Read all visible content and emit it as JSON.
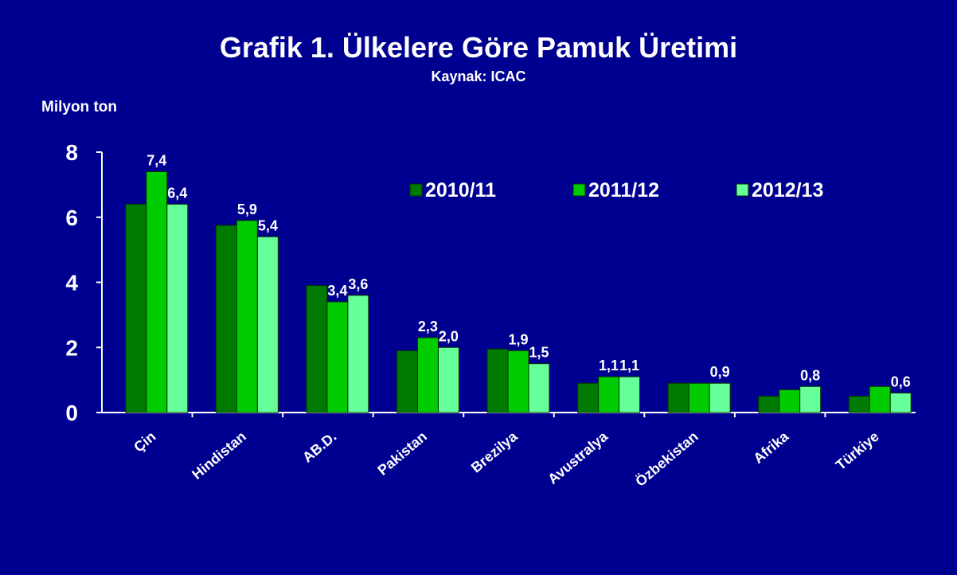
{
  "chart_data": {
    "type": "bar",
    "title": "Grafik 1. Ülkelere Göre Pamuk Üretimi",
    "subtitle": "Kaynak: ICAC",
    "y_label": "Milyon ton",
    "categories": [
      "Çin",
      "Hindistan",
      "AB.D.",
      "Pakistan",
      "Brezilya",
      "Avustralya",
      "Özbekistan",
      "Afrika",
      "Türkiye"
    ],
    "series": [
      {
        "name": "2010/11",
        "color": "#007a00",
        "values": [
          6.4,
          5.75,
          3.9,
          1.9,
          1.95,
          0.9,
          0.9,
          0.5,
          0.5
        ]
      },
      {
        "name": "2011/12",
        "color": "#00cc00",
        "values": [
          7.4,
          5.9,
          3.4,
          2.3,
          1.9,
          1.1,
          0.9,
          0.7,
          0.8
        ],
        "value_labels": [
          "7,4",
          "5,9",
          "3,4",
          "2,3",
          "1,9",
          "1,1",
          null,
          null,
          null
        ]
      },
      {
        "name": "2012/13",
        "color": "#66ff99",
        "values": [
          6.4,
          5.4,
          3.6,
          2.0,
          1.5,
          1.1,
          0.9,
          0.8,
          0.6
        ],
        "value_labels": [
          "6,4",
          "5,4",
          "3,6",
          "2,0",
          "1,5",
          "1,1",
          "0,9",
          "0,8",
          "0,6"
        ]
      }
    ],
    "ylim": [
      0,
      8
    ],
    "yticks": [
      0,
      2,
      4,
      6,
      8
    ],
    "legend": "top-right"
  }
}
